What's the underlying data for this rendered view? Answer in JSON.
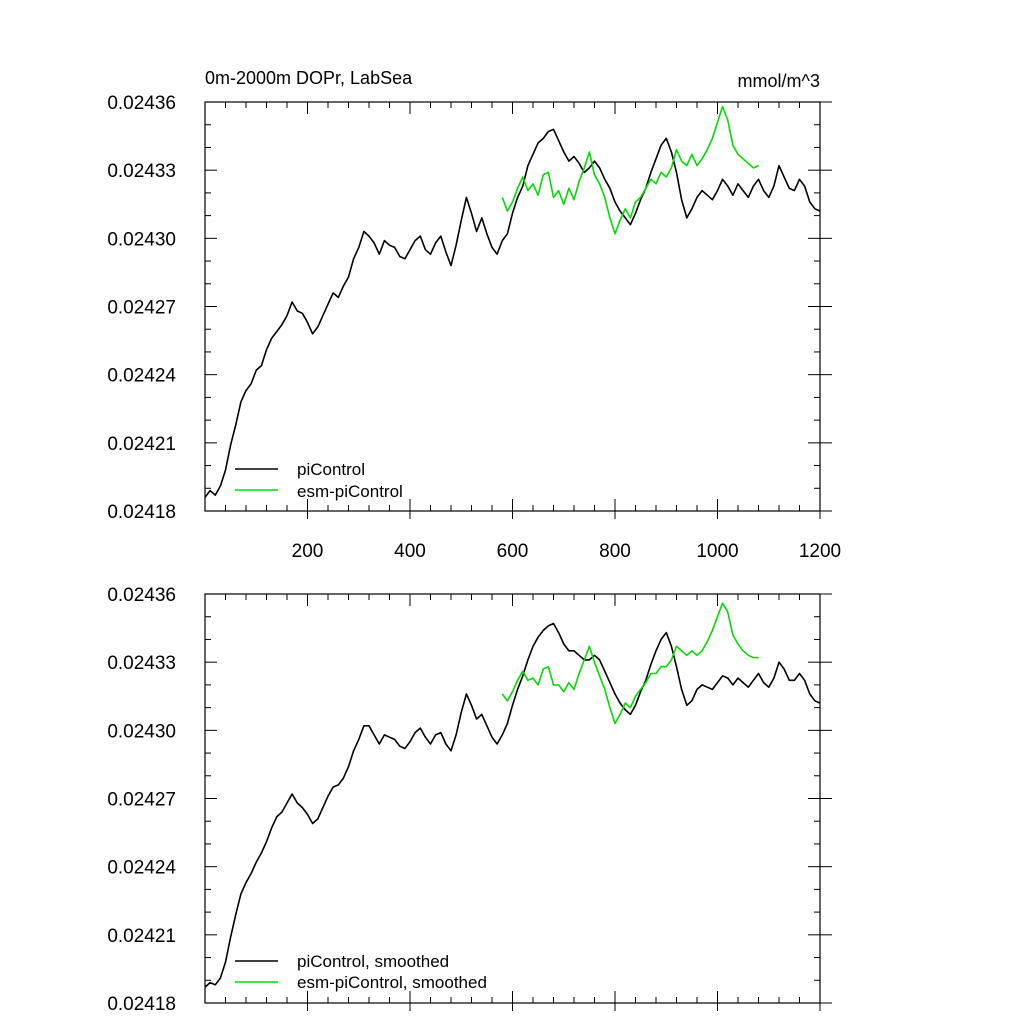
{
  "figure": {
    "title": "0m-2000m DOPr, LabSea",
    "units": "mmol/m^3"
  },
  "colors": {
    "piControl": "#000000",
    "esm": "#00dd00",
    "axis": "#000000"
  },
  "chart_data": [
    {
      "type": "line",
      "title": "0m-2000m DOPr, LabSea",
      "units_label": "mmol/m^3",
      "xlim": [
        0,
        1200
      ],
      "ylim": [
        0.02418,
        0.02436
      ],
      "x_ticks": [
        200,
        400,
        600,
        800,
        1000,
        1200
      ],
      "x_tick_labels": [
        "200",
        "400",
        "600",
        "800",
        "1000",
        "1200"
      ],
      "y_ticks": [
        0.02418,
        0.02421,
        0.02424,
        0.02427,
        0.0243,
        0.02433,
        0.02436
      ],
      "y_tick_labels": [
        "0.02418",
        "0.02421",
        "0.02424",
        "0.02427",
        "0.02430",
        "0.02433",
        "0.02436"
      ],
      "legend_position": "bottom-left",
      "series": [
        {
          "name": "piControl",
          "color": "#000000",
          "x": [
            0,
            10,
            20,
            30,
            40,
            50,
            60,
            70,
            80,
            90,
            100,
            110,
            120,
            130,
            140,
            150,
            160,
            170,
            180,
            190,
            200,
            210,
            220,
            230,
            240,
            250,
            260,
            270,
            280,
            290,
            300,
            310,
            320,
            330,
            340,
            350,
            360,
            370,
            380,
            390,
            400,
            410,
            420,
            430,
            440,
            450,
            460,
            470,
            480,
            490,
            500,
            510,
            520,
            530,
            540,
            550,
            560,
            570,
            580,
            590,
            600,
            610,
            620,
            630,
            640,
            650,
            660,
            670,
            680,
            690,
            700,
            710,
            720,
            730,
            740,
            750,
            760,
            770,
            780,
            790,
            800,
            810,
            820,
            830,
            840,
            850,
            860,
            870,
            880,
            890,
            900,
            910,
            920,
            930,
            940,
            950,
            960,
            970,
            980,
            990,
            1000,
            1010,
            1020,
            1030,
            1040,
            1050,
            1060,
            1070,
            1080,
            1090,
            1100,
            1110,
            1120,
            1130,
            1140,
            1150,
            1160,
            1170,
            1180,
            1190,
            1200
          ],
          "values": [
            0.024186,
            0.024189,
            0.024187,
            0.024191,
            0.024198,
            0.024209,
            0.024218,
            0.024228,
            0.024233,
            0.024236,
            0.024242,
            0.024244,
            0.024251,
            0.024256,
            0.024259,
            0.024262,
            0.024266,
            0.024272,
            0.024268,
            0.024267,
            0.024263,
            0.024258,
            0.024261,
            0.024266,
            0.024271,
            0.024276,
            0.024274,
            0.024279,
            0.024283,
            0.024291,
            0.024296,
            0.024303,
            0.024301,
            0.024298,
            0.024293,
            0.024299,
            0.024297,
            0.024296,
            0.024292,
            0.024291,
            0.024295,
            0.024299,
            0.024301,
            0.024295,
            0.024293,
            0.024298,
            0.024301,
            0.024294,
            0.024288,
            0.024297,
            0.024308,
            0.024318,
            0.024311,
            0.024303,
            0.024309,
            0.024302,
            0.024296,
            0.024293,
            0.024299,
            0.024302,
            0.024311,
            0.024318,
            0.024323,
            0.024332,
            0.024337,
            0.024342,
            0.024344,
            0.024347,
            0.024348,
            0.024343,
            0.024338,
            0.024334,
            0.024336,
            0.024333,
            0.024329,
            0.024331,
            0.024334,
            0.024331,
            0.024326,
            0.024322,
            0.024316,
            0.024312,
            0.024309,
            0.024306,
            0.024311,
            0.024317,
            0.024322,
            0.024329,
            0.024335,
            0.024341,
            0.024344,
            0.024338,
            0.024329,
            0.024317,
            0.024309,
            0.024313,
            0.024318,
            0.024321,
            0.024319,
            0.024317,
            0.024321,
            0.024326,
            0.024323,
            0.024319,
            0.024324,
            0.024321,
            0.024318,
            0.024323,
            0.024326,
            0.024321,
            0.024318,
            0.024323,
            0.024332,
            0.024327,
            0.024322,
            0.024321,
            0.024326,
            0.024323,
            0.024316,
            0.024313,
            0.024312
          ]
        },
        {
          "name": "esm-piControl",
          "color": "#00dd00",
          "x": [
            580,
            590,
            600,
            610,
            620,
            630,
            640,
            650,
            660,
            670,
            680,
            690,
            700,
            710,
            720,
            730,
            740,
            750,
            760,
            770,
            780,
            790,
            800,
            810,
            820,
            830,
            840,
            850,
            860,
            870,
            880,
            890,
            900,
            910,
            920,
            930,
            940,
            950,
            960,
            970,
            980,
            990,
            1000,
            1010,
            1020,
            1030,
            1040,
            1050,
            1060,
            1070,
            1080
          ],
          "values": [
            0.024318,
            0.024312,
            0.024316,
            0.024322,
            0.024327,
            0.024321,
            0.024324,
            0.024319,
            0.024328,
            0.024329,
            0.024318,
            0.024321,
            0.024315,
            0.024322,
            0.024317,
            0.024325,
            0.024331,
            0.024338,
            0.024328,
            0.024324,
            0.024318,
            0.024309,
            0.024302,
            0.024308,
            0.024313,
            0.024309,
            0.024316,
            0.024318,
            0.024322,
            0.024326,
            0.024324,
            0.024329,
            0.024327,
            0.024331,
            0.024339,
            0.024334,
            0.024332,
            0.024337,
            0.024332,
            0.024335,
            0.024339,
            0.024344,
            0.024351,
            0.024358,
            0.024352,
            0.024341,
            0.024337,
            0.024335,
            0.024333,
            0.024331,
            0.024332
          ]
        }
      ]
    },
    {
      "type": "line",
      "xlim": [
        0,
        1200
      ],
      "ylim": [
        0.02418,
        0.02436
      ],
      "x_ticks": [
        200,
        400,
        600,
        800,
        1000,
        1200
      ],
      "y_ticks": [
        0.02418,
        0.02421,
        0.02424,
        0.02427,
        0.0243,
        0.02433,
        0.02436
      ],
      "y_tick_labels": [
        "0.02418",
        "0.02421",
        "0.02424",
        "0.02427",
        "0.02430",
        "0.02433",
        "0.02436"
      ],
      "legend_position": "bottom-left",
      "series": [
        {
          "name": "piControl, smoothed",
          "color": "#000000",
          "x": [
            0,
            10,
            20,
            30,
            40,
            50,
            60,
            70,
            80,
            90,
            100,
            110,
            120,
            130,
            140,
            150,
            160,
            170,
            180,
            190,
            200,
            210,
            220,
            230,
            240,
            250,
            260,
            270,
            280,
            290,
            300,
            310,
            320,
            330,
            340,
            350,
            360,
            370,
            380,
            390,
            400,
            410,
            420,
            430,
            440,
            450,
            460,
            470,
            480,
            490,
            500,
            510,
            520,
            530,
            540,
            550,
            560,
            570,
            580,
            590,
            600,
            610,
            620,
            630,
            640,
            650,
            660,
            670,
            680,
            690,
            700,
            710,
            720,
            730,
            740,
            750,
            760,
            770,
            780,
            790,
            800,
            810,
            820,
            830,
            840,
            850,
            860,
            870,
            880,
            890,
            900,
            910,
            920,
            930,
            940,
            950,
            960,
            970,
            980,
            990,
            1000,
            1010,
            1020,
            1030,
            1040,
            1050,
            1060,
            1070,
            1080,
            1090,
            1100,
            1110,
            1120,
            1130,
            1140,
            1150,
            1160,
            1170,
            1180,
            1190,
            1200
          ],
          "values": [
            0.024187,
            0.024189,
            0.024188,
            0.024191,
            0.024198,
            0.024209,
            0.024219,
            0.024228,
            0.024233,
            0.024237,
            0.024242,
            0.024246,
            0.024251,
            0.024257,
            0.024262,
            0.024264,
            0.024268,
            0.024272,
            0.024268,
            0.024266,
            0.024263,
            0.024259,
            0.024261,
            0.024266,
            0.024271,
            0.024275,
            0.024276,
            0.024279,
            0.024284,
            0.024291,
            0.024296,
            0.024302,
            0.024302,
            0.024298,
            0.024294,
            0.024298,
            0.024297,
            0.024296,
            0.024293,
            0.024292,
            0.024295,
            0.024299,
            0.024301,
            0.024297,
            0.024294,
            0.024298,
            0.024299,
            0.024294,
            0.024291,
            0.024298,
            0.024308,
            0.024316,
            0.024311,
            0.024305,
            0.024307,
            0.024302,
            0.024297,
            0.024294,
            0.024298,
            0.024303,
            0.024311,
            0.024318,
            0.024324,
            0.024331,
            0.024337,
            0.024341,
            0.024344,
            0.024346,
            0.024347,
            0.024343,
            0.024338,
            0.024335,
            0.024335,
            0.024333,
            0.024331,
            0.024331,
            0.024333,
            0.024331,
            0.024326,
            0.024321,
            0.024316,
            0.024312,
            0.024309,
            0.024307,
            0.024311,
            0.024317,
            0.024322,
            0.024329,
            0.024335,
            0.02434,
            0.024343,
            0.024337,
            0.024328,
            0.024318,
            0.024311,
            0.024313,
            0.024318,
            0.02432,
            0.024319,
            0.024318,
            0.024321,
            0.024324,
            0.024323,
            0.02432,
            0.024323,
            0.024321,
            0.024319,
            0.024322,
            0.024325,
            0.024321,
            0.024319,
            0.024323,
            0.02433,
            0.024327,
            0.024322,
            0.024322,
            0.024325,
            0.024322,
            0.024316,
            0.024313,
            0.024312
          ]
        },
        {
          "name": "esm-piControl, smoothed",
          "color": "#00dd00",
          "x": [
            580,
            590,
            600,
            610,
            620,
            630,
            640,
            650,
            660,
            670,
            680,
            690,
            700,
            710,
            720,
            730,
            740,
            750,
            760,
            770,
            780,
            790,
            800,
            810,
            820,
            830,
            840,
            850,
            860,
            870,
            880,
            890,
            900,
            910,
            920,
            930,
            940,
            950,
            960,
            970,
            980,
            990,
            1000,
            1010,
            1020,
            1030,
            1040,
            1050,
            1060,
            1070,
            1080
          ],
          "values": [
            0.024316,
            0.024313,
            0.024317,
            0.024322,
            0.024326,
            0.024322,
            0.024323,
            0.02432,
            0.024327,
            0.024328,
            0.02432,
            0.02432,
            0.024317,
            0.024321,
            0.024318,
            0.024325,
            0.024331,
            0.024337,
            0.02433,
            0.024324,
            0.024318,
            0.02431,
            0.024303,
            0.024307,
            0.024312,
            0.02431,
            0.024315,
            0.024318,
            0.024321,
            0.024325,
            0.024325,
            0.024328,
            0.024328,
            0.024331,
            0.024337,
            0.024335,
            0.024333,
            0.024335,
            0.024333,
            0.024335,
            0.024339,
            0.024344,
            0.02435,
            0.024356,
            0.024352,
            0.024342,
            0.024338,
            0.024335,
            0.024333,
            0.024332,
            0.024332
          ]
        }
      ]
    }
  ]
}
